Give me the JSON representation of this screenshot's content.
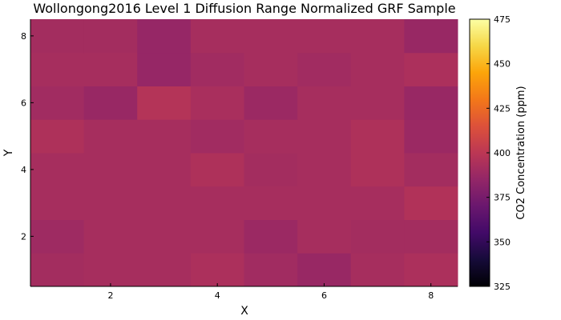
{
  "chart_data": {
    "type": "heatmap",
    "title": "Wollongong2016 Level 1 Diffusion Range Normalized GRF Sample",
    "xlabel": "X",
    "ylabel": "Y",
    "xlim": [
      0.5,
      8.5
    ],
    "ylim": [
      0.5,
      8.5
    ],
    "xticks": [
      2,
      4,
      6,
      8
    ],
    "yticks": [
      2,
      4,
      6,
      8
    ],
    "x": [
      1,
      2,
      3,
      4,
      5,
      6,
      7,
      8
    ],
    "y": [
      1,
      2,
      3,
      4,
      5,
      6,
      7,
      8
    ],
    "z": [
      [
        391,
        392,
        392,
        394,
        390,
        387,
        392,
        394
      ],
      [
        389,
        392,
        392,
        392,
        388,
        392,
        391,
        391
      ],
      [
        392,
        392,
        392,
        392,
        392,
        392,
        392,
        396
      ],
      [
        392,
        392,
        392,
        395,
        391,
        392,
        395,
        391
      ],
      [
        395,
        392,
        392,
        390,
        392,
        392,
        395,
        388
      ],
      [
        390,
        387,
        397,
        393,
        388,
        392,
        392,
        387
      ],
      [
        392,
        392,
        386,
        390,
        392,
        390,
        392,
        394
      ],
      [
        391,
        391,
        386,
        392,
        392,
        392,
        392,
        387
      ]
    ],
    "colorbar": {
      "label": "CO2 Concentration (ppm)",
      "range": [
        325,
        475
      ],
      "ticks": [
        325,
        350,
        375,
        400,
        425,
        450,
        475
      ],
      "colormap": "inferno"
    },
    "grid": false
  }
}
